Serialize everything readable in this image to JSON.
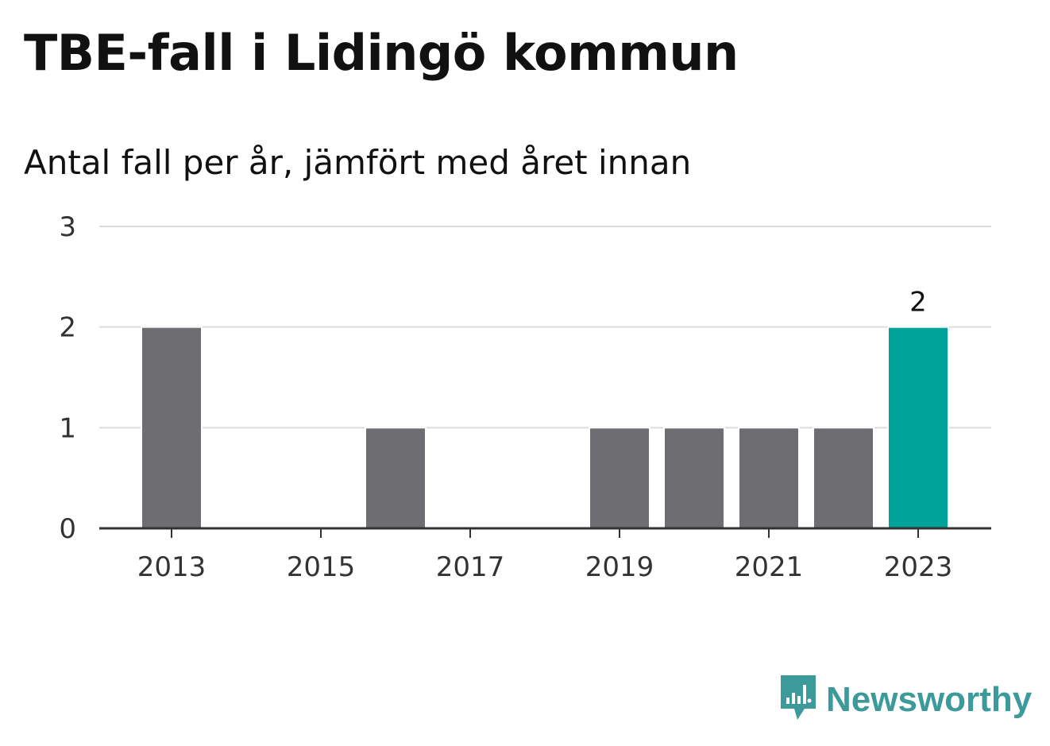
{
  "header": {
    "title": "TBE-fall i Lidingö kommun",
    "subtitle": "Antal fall per år, jämfört med året innan"
  },
  "brand": {
    "name": "Newsworthy",
    "icon": "chart-bubble-icon",
    "color": "#3d9a9a"
  },
  "colors": {
    "bar": "#6e6d72",
    "highlight": "#00a39a",
    "grid": "#dcdcdc",
    "axis": "#333333"
  },
  "chart_data": {
    "type": "bar",
    "title": "TBE-fall i Lidingö kommun",
    "subtitle": "Antal fall per år, jämfört med året innan",
    "xlabel": "",
    "ylabel": "",
    "categories": [
      "2013",
      "2014",
      "2015",
      "2016",
      "2017",
      "2018",
      "2019",
      "2020",
      "2021",
      "2022",
      "2023"
    ],
    "values": [
      2,
      0,
      0,
      1,
      0,
      0,
      1,
      1,
      1,
      1,
      2
    ],
    "ylim": [
      0,
      3
    ],
    "yticks": [
      0,
      1,
      2,
      3
    ],
    "xtick_labels": [
      "2013",
      "2015",
      "2017",
      "2019",
      "2021",
      "2023"
    ],
    "highlight_category": "2023",
    "data_labels": [
      {
        "category": "2023",
        "text": "2"
      }
    ],
    "grid": true,
    "legend": "none"
  }
}
